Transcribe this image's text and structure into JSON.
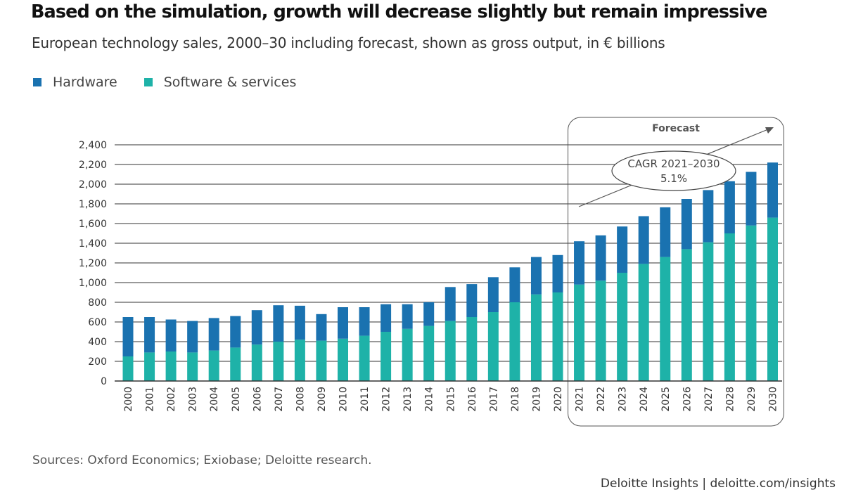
{
  "title": "Based on the simulation, growth will decrease slightly but remain impressive",
  "subtitle": "European technology sales, 2000–30 including forecast, shown as gross output, in € billions",
  "colors": {
    "hardware": "#1a72b0",
    "software": "#1eb2a8",
    "grid": "#333333",
    "axis": "#333333",
    "annotation": "#555555"
  },
  "footer": {
    "source": "Sources: Oxford Economics; Exiobase; Deloitte research.",
    "brand": "Deloitte Insights | deloitte.com/insights"
  },
  "chart_data": {
    "type": "bar",
    "stacked": true,
    "title": "Based on the simulation, growth will decrease slightly but remain impressive",
    "subtitle": "European technology sales, 2000–30 including forecast, shown as gross output, in € billions",
    "xlabel": "",
    "ylabel": "",
    "ylim": [
      0,
      2400
    ],
    "yticks": [
      0,
      200,
      400,
      600,
      800,
      1000,
      1200,
      1400,
      1600,
      1800,
      2000,
      2200,
      2400
    ],
    "ytick_labels": [
      "0",
      "200",
      "400",
      "600",
      "800",
      "1,000",
      "1,200",
      "1,400",
      "1,600",
      "1,800",
      "2,000",
      "2,200",
      "2,400"
    ],
    "grid": true,
    "legend_position": "top-left",
    "categories": [
      "2000",
      "2001",
      "2002",
      "2003",
      "2004",
      "2005",
      "2006",
      "2007",
      "2008",
      "2009",
      "2010",
      "2011",
      "2012",
      "2013",
      "2014",
      "2015",
      "2016",
      "2017",
      "2018",
      "2019",
      "2020",
      "2021",
      "2022",
      "2023",
      "2024",
      "2025",
      "2026",
      "2027",
      "2028",
      "2029",
      "2030"
    ],
    "series": [
      {
        "name": "Software & services",
        "values": [
          250,
          290,
          300,
          290,
          310,
          340,
          370,
          400,
          420,
          410,
          430,
          460,
          500,
          530,
          560,
          610,
          650,
          700,
          800,
          880,
          900,
          980,
          1020,
          1100,
          1190,
          1260,
          1340,
          1410,
          1500,
          1580,
          1660
        ]
      },
      {
        "name": "Hardware",
        "values": [
          400,
          360,
          325,
          320,
          330,
          320,
          350,
          370,
          345,
          270,
          320,
          290,
          280,
          250,
          240,
          345,
          335,
          355,
          355,
          380,
          380,
          440,
          460,
          470,
          485,
          505,
          510,
          530,
          530,
          545,
          560
        ]
      }
    ],
    "annotations": {
      "forecast_label": "Forecast",
      "forecast_range": [
        "2021",
        "2030"
      ],
      "cagr_line1": "CAGR 2021–2030",
      "cagr_line2": "5.1%"
    }
  }
}
